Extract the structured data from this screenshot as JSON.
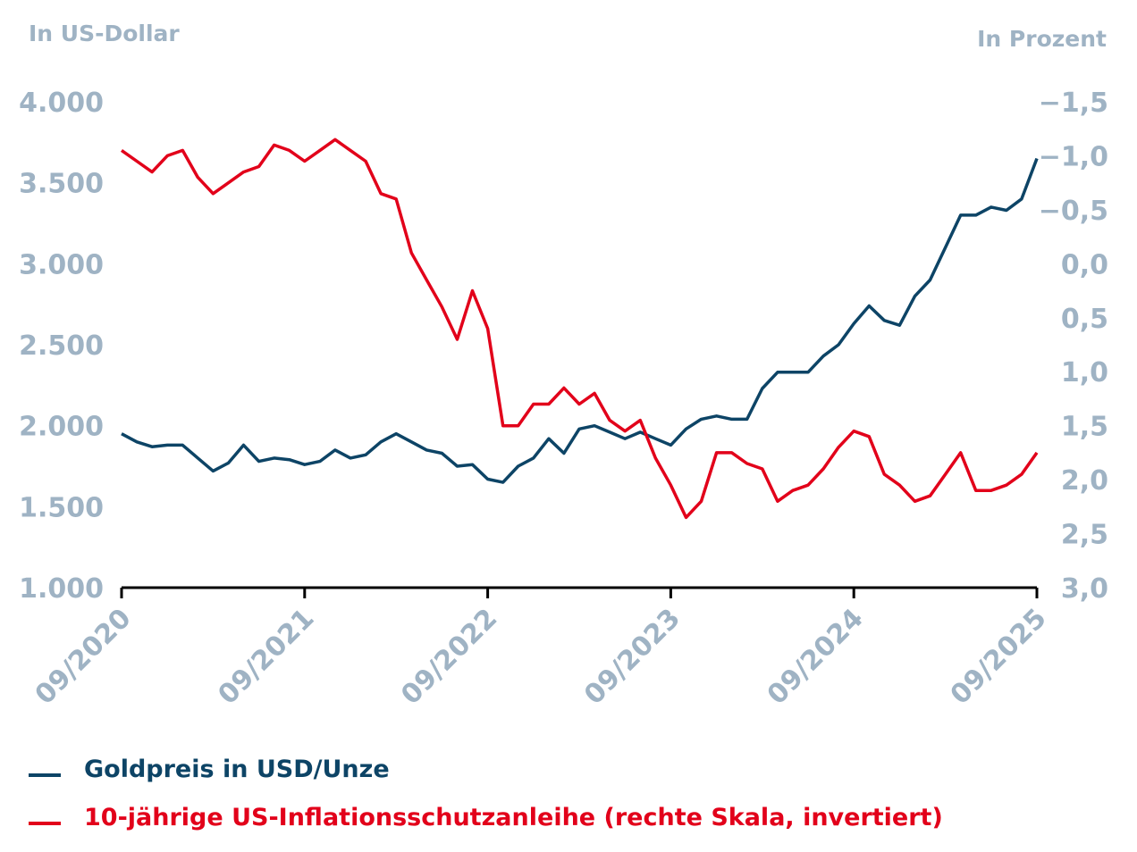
{
  "chart_data": {
    "type": "line",
    "left_axis_label": "In US-Dollar",
    "right_axis_label": "In Prozent",
    "left_ylim": [
      1000,
      4000
    ],
    "left_ticks": [
      "1.000",
      "1.500",
      "2.000",
      "2.500",
      "3.000",
      "3.500",
      "4.000"
    ],
    "left_tick_values": [
      1000,
      1500,
      2000,
      2500,
      3000,
      3500,
      4000
    ],
    "right_ylim": [
      -1.5,
      3.0
    ],
    "right_inverted": true,
    "right_ticks": [
      "−1,5",
      "−1,0",
      "−0,5",
      "0,0",
      "0,5",
      "1,0",
      "1,5",
      "2,0",
      "2,5",
      "3,0"
    ],
    "right_tick_values": [
      -1.5,
      -1.0,
      -0.5,
      0,
      0.5,
      1.0,
      1.5,
      2.0,
      2.5,
      3.0
    ],
    "x_ticks": [
      "09/2020",
      "09/2021",
      "09/2022",
      "09/2023",
      "09/2024",
      "09/2025"
    ],
    "x_range": [
      "2020-09",
      "2025-09"
    ],
    "grid": false,
    "legend_placement": "bottom",
    "series": [
      {
        "name": "Goldpreis in USD/Unze",
        "axis": "left",
        "color": "#0d4466",
        "x": [
          "2020-09",
          "2020-10",
          "2020-11",
          "2020-12",
          "2021-01",
          "2021-02",
          "2021-03",
          "2021-04",
          "2021-05",
          "2021-06",
          "2021-07",
          "2021-08",
          "2021-09",
          "2021-10",
          "2021-11",
          "2021-12",
          "2022-01",
          "2022-02",
          "2022-03",
          "2022-04",
          "2022-05",
          "2022-06",
          "2022-07",
          "2022-08",
          "2022-09",
          "2022-10",
          "2022-11",
          "2022-12",
          "2023-01",
          "2023-02",
          "2023-03",
          "2023-04",
          "2023-05",
          "2023-06",
          "2023-07",
          "2023-08",
          "2023-09",
          "2023-10",
          "2023-11",
          "2023-12",
          "2024-01",
          "2024-02",
          "2024-03",
          "2024-04",
          "2024-05",
          "2024-06",
          "2024-07",
          "2024-08",
          "2024-09",
          "2024-10",
          "2024-11",
          "2024-12",
          "2025-01",
          "2025-02",
          "2025-03",
          "2025-04",
          "2025-05",
          "2025-06",
          "2025-07",
          "2025-08",
          "2025-09"
        ],
        "values": [
          1950,
          1900,
          1870,
          1880,
          1880,
          1800,
          1720,
          1770,
          1880,
          1780,
          1800,
          1790,
          1760,
          1780,
          1850,
          1800,
          1820,
          1900,
          1950,
          1900,
          1850,
          1830,
          1750,
          1760,
          1670,
          1650,
          1750,
          1800,
          1920,
          1830,
          1980,
          2000,
          1960,
          1920,
          1960,
          1920,
          1880,
          1980,
          2040,
          2060,
          2040,
          2040,
          2230,
          2330,
          2330,
          2330,
          2430,
          2500,
          2630,
          2740,
          2650,
          2620,
          2800,
          2900,
          3100,
          3300,
          3300,
          3350,
          3330,
          3400,
          3650
        ]
      },
      {
        "name": "10-jährige US-Inflationsschutzanleihe (rechte Skala, invertiert)",
        "axis": "right",
        "color": "#e2001a",
        "x": [
          "2020-09",
          "2020-10",
          "2020-11",
          "2020-12",
          "2021-01",
          "2021-02",
          "2021-03",
          "2021-04",
          "2021-05",
          "2021-06",
          "2021-07",
          "2021-08",
          "2021-09",
          "2021-10",
          "2021-11",
          "2021-12",
          "2022-01",
          "2022-02",
          "2022-03",
          "2022-04",
          "2022-05",
          "2022-06",
          "2022-07",
          "2022-08",
          "2022-09",
          "2022-10",
          "2022-11",
          "2022-12",
          "2023-01",
          "2023-02",
          "2023-03",
          "2023-04",
          "2023-05",
          "2023-06",
          "2023-07",
          "2023-08",
          "2023-09",
          "2023-10",
          "2023-11",
          "2023-12",
          "2024-01",
          "2024-02",
          "2024-03",
          "2024-04",
          "2024-05",
          "2024-06",
          "2024-07",
          "2024-08",
          "2024-09",
          "2024-10",
          "2024-11",
          "2024-12",
          "2025-01",
          "2025-02",
          "2025-03",
          "2025-04",
          "2025-05",
          "2025-06",
          "2025-07",
          "2025-08",
          "2025-09"
        ],
        "values": [
          -1.05,
          -0.95,
          -0.85,
          -1.0,
          -1.05,
          -0.8,
          -0.65,
          -0.75,
          -0.85,
          -0.9,
          -1.1,
          -1.05,
          -0.95,
          -1.05,
          -1.15,
          -1.05,
          -0.95,
          -0.65,
          -0.6,
          -0.1,
          0.15,
          0.4,
          0.7,
          0.25,
          0.6,
          1.5,
          1.5,
          1.3,
          1.3,
          1.15,
          1.3,
          1.2,
          1.45,
          1.55,
          1.45,
          1.8,
          2.05,
          2.35,
          2.2,
          1.75,
          1.75,
          1.85,
          1.9,
          2.2,
          2.1,
          2.05,
          1.9,
          1.7,
          1.55,
          1.6,
          1.95,
          2.05,
          2.2,
          2.15,
          1.95,
          1.75,
          2.1,
          2.1,
          2.05,
          1.95,
          1.75
        ]
      }
    ]
  },
  "legend": {
    "gold": "Goldpreis in USD/Unze",
    "tips": "10-jährige US-Inflationsschutzanleihe (rechte Skala, invertiert)"
  },
  "colors": {
    "gold": "#0d4466",
    "tips": "#e2001a",
    "axis_text": "#9fb3c4",
    "axis_line": "#000000"
  }
}
